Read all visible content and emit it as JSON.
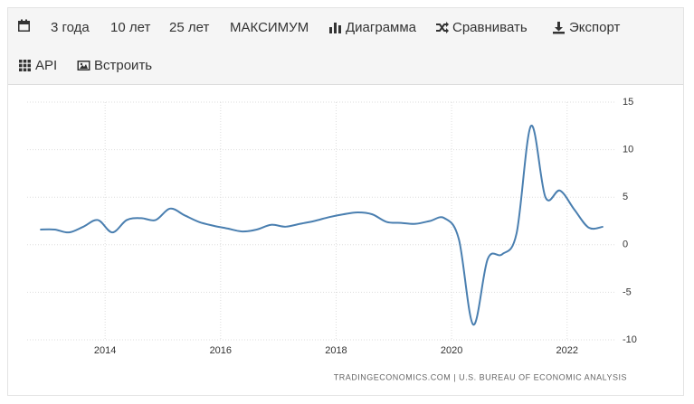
{
  "toolbar": {
    "row1": [
      "3 года",
      "10 лет",
      "25 лет",
      "МАКСИМУМ",
      "Диаграмма",
      "Сравнивать",
      "Экспорт"
    ],
    "row2": [
      "API",
      "Встроить"
    ]
  },
  "chart_data": {
    "type": "line",
    "source": "TRADINGECONOMICS.COM | U.S. BUREAU OF ECONOMIC ANALYSIS",
    "x": [
      2012.875,
      2013.125,
      2013.375,
      2013.625,
      2013.875,
      2014.125,
      2014.375,
      2014.625,
      2014.875,
      2015.125,
      2015.375,
      2015.625,
      2015.875,
      2016.125,
      2016.375,
      2016.625,
      2016.875,
      2017.125,
      2017.375,
      2017.625,
      2017.875,
      2018.125,
      2018.375,
      2018.625,
      2018.875,
      2019.125,
      2019.375,
      2019.625,
      2019.875,
      2020.125,
      2020.375,
      2020.625,
      2020.875,
      2021.125,
      2021.375,
      2021.625,
      2021.875,
      2022.125,
      2022.375,
      2022.625
    ],
    "series": [
      {
        "color": "#4a7fb0",
        "values": [
          1.6,
          1.6,
          1.3,
          1.9,
          2.6,
          1.3,
          2.6,
          2.8,
          2.6,
          3.8,
          3.1,
          2.4,
          2.0,
          1.7,
          1.4,
          1.6,
          2.1,
          1.9,
          2.2,
          2.5,
          2.9,
          3.2,
          3.4,
          3.2,
          2.4,
          2.3,
          2.2,
          2.5,
          2.8,
          0.6,
          -8.4,
          -1.5,
          -1.0,
          1.2,
          12.5,
          5.0,
          5.7,
          3.7,
          1.8,
          1.9
        ]
      }
    ],
    "xlim": [
      2012.65,
      2022.85
    ],
    "xticks": [
      2014,
      2016,
      2018,
      2020,
      2022
    ],
    "ylim": [
      -10,
      15
    ],
    "yticks": [
      15,
      10,
      5,
      0,
      -5,
      -10
    ],
    "grid": true
  }
}
